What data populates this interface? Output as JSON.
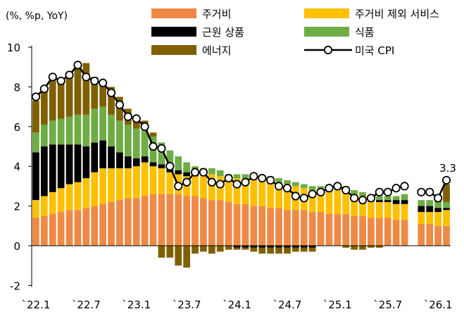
{
  "chart_data": {
    "type": "bar",
    "stacked": true,
    "unit_label": "(%, %p, YoY)",
    "ylim": [
      -2,
      10
    ],
    "y_ticks": [
      -2,
      0,
      2,
      4,
      6,
      8,
      10
    ],
    "x_tick_labels": [
      "`22.1",
      "`22.7",
      "`23.1",
      "`23.7",
      "`24.1",
      "`24.7",
      "`25.1",
      "`25.7",
      "`26.1"
    ],
    "categories": [
      "22.1",
      "22.2",
      "22.3",
      "22.4",
      "22.5",
      "22.6",
      "22.7",
      "22.8",
      "22.9",
      "22.10",
      "22.11",
      "22.12",
      "23.1",
      "23.2",
      "23.3",
      "23.4",
      "23.5",
      "23.6",
      "23.7",
      "23.8",
      "23.9",
      "23.10",
      "23.11",
      "23.12",
      "24.1",
      "24.2",
      "24.3",
      "24.4",
      "24.5",
      "24.6",
      "24.7",
      "24.8",
      "24.9",
      "24.10",
      "24.11",
      "24.12",
      "25.1",
      "25.2",
      "25.3",
      "25.4",
      "25.5",
      "25.6",
      "25.7",
      "25.8",
      "25.9",
      "25.10",
      "25.11",
      "25.12",
      "26.1",
      "26.2"
    ],
    "series": [
      {
        "name": "주거비",
        "color": "#ee8a46",
        "values": [
          1.4,
          1.5,
          1.6,
          1.7,
          1.8,
          1.8,
          1.9,
          2.0,
          2.1,
          2.2,
          2.3,
          2.4,
          2.4,
          2.5,
          2.6,
          2.6,
          2.6,
          2.6,
          2.5,
          2.5,
          2.4,
          2.3,
          2.3,
          2.2,
          2.1,
          2.1,
          2.0,
          2.0,
          1.9,
          1.9,
          1.8,
          1.8,
          1.8,
          1.7,
          1.7,
          1.6,
          1.6,
          1.6,
          1.5,
          1.5,
          1.4,
          1.4,
          1.4,
          1.3,
          1.3,
          null,
          1.1,
          1.1,
          1.0,
          1.0
        ]
      },
      {
        "name": "주거비 제외 서비스",
        "color": "#ffc000",
        "values": [
          0.9,
          1.0,
          1.1,
          1.2,
          1.3,
          1.4,
          1.5,
          1.7,
          1.8,
          1.7,
          1.6,
          1.5,
          1.6,
          1.7,
          1.4,
          1.3,
          1.1,
          1.0,
          1.0,
          1.0,
          1.2,
          1.3,
          1.2,
          1.2,
          1.3,
          1.3,
          1.3,
          1.3,
          1.4,
          1.3,
          1.3,
          1.2,
          1.1,
          1.1,
          1.1,
          1.1,
          1.2,
          1.2,
          1.1,
          1.0,
          0.8,
          0.8,
          0.8,
          0.8,
          0.8,
          null,
          0.6,
          0.6,
          0.7,
          0.8
        ]
      },
      {
        "name": "근원 상품",
        "color": "#000000",
        "values": [
          2.4,
          2.5,
          2.4,
          2.2,
          2.0,
          1.9,
          1.6,
          1.5,
          1.4,
          1.1,
          0.8,
          0.6,
          0.4,
          0.3,
          0.2,
          0.2,
          0.2,
          0.2,
          0.2,
          0.1,
          0.0,
          0.0,
          0.0,
          0.0,
          -0.1,
          -0.1,
          -0.1,
          -0.1,
          -0.1,
          -0.1,
          -0.1,
          -0.1,
          -0.1,
          -0.1,
          0.0,
          0.0,
          0.0,
          0.0,
          0.0,
          0.0,
          0.0,
          0.1,
          0.1,
          0.2,
          0.2,
          null,
          0.3,
          0.3,
          0.2,
          0.1
        ]
      },
      {
        "name": "식품",
        "color": "#6fac46",
        "values": [
          1.0,
          1.1,
          1.2,
          1.3,
          1.4,
          1.5,
          1.6,
          1.7,
          1.7,
          1.6,
          1.6,
          1.6,
          1.5,
          1.5,
          1.3,
          1.1,
          0.9,
          0.7,
          0.5,
          0.4,
          0.3,
          0.3,
          0.3,
          0.2,
          0.2,
          0.2,
          0.2,
          0.2,
          0.2,
          0.2,
          0.2,
          0.2,
          0.2,
          0.2,
          0.2,
          0.2,
          0.2,
          0.2,
          0.2,
          0.2,
          0.2,
          0.2,
          0.2,
          0.2,
          0.3,
          null,
          0.3,
          0.3,
          0.3,
          0.3
        ]
      },
      {
        "name": "에너지",
        "color": "#7f6000",
        "values": [
          1.6,
          1.8,
          2.2,
          1.9,
          2.2,
          2.5,
          2.6,
          1.6,
          1.3,
          1.4,
          1.2,
          0.8,
          0.5,
          0.3,
          0.2,
          -0.6,
          -0.6,
          -1.0,
          -1.1,
          -0.4,
          -0.3,
          -0.4,
          -0.3,
          -0.2,
          -0.1,
          -0.1,
          -0.2,
          -0.3,
          -0.3,
          -0.3,
          -0.3,
          -0.2,
          -0.2,
          -0.2,
          0.0,
          0.0,
          0.0,
          -0.1,
          -0.2,
          -0.2,
          -0.1,
          -0.1,
          0.0,
          0.0,
          0.0,
          null,
          0.0,
          0.0,
          0.1,
          0.9
        ]
      },
      {
        "name": "미국 CPI",
        "type": "line",
        "color": "#000000",
        "values": [
          7.5,
          7.9,
          8.5,
          8.3,
          8.6,
          9.1,
          8.5,
          8.3,
          8.2,
          7.7,
          7.1,
          6.5,
          6.4,
          6.0,
          5.0,
          4.9,
          4.0,
          3.0,
          3.2,
          3.7,
          3.7,
          3.2,
          3.1,
          3.4,
          3.1,
          3.2,
          3.5,
          3.4,
          3.3,
          3.0,
          2.9,
          2.5,
          2.4,
          2.6,
          2.7,
          2.9,
          3.0,
          2.8,
          2.4,
          2.3,
          2.4,
          2.7,
          2.7,
          2.9,
          3.0,
          null,
          2.7,
          2.7,
          2.4,
          3.3
        ]
      }
    ],
    "annotations": [
      {
        "text": "3.3",
        "target": "last point of 미국 CPI"
      }
    ],
    "legend_position": "top"
  }
}
